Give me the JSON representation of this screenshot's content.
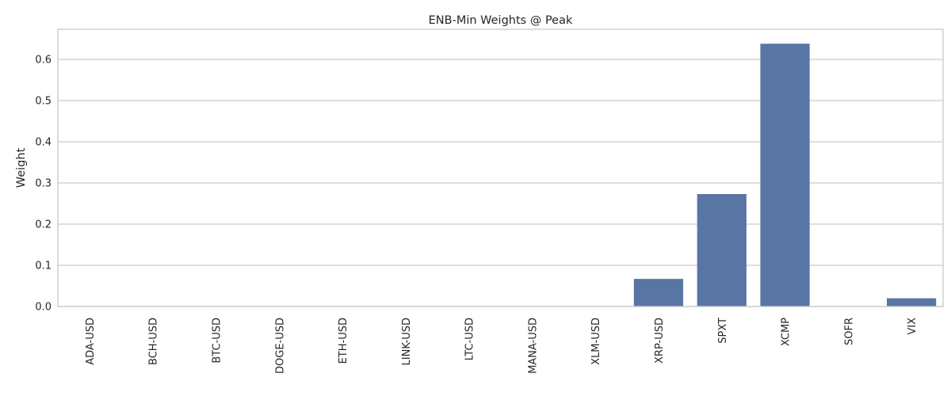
{
  "chart_data": {
    "type": "bar",
    "title": "ENB-Min Weights @ Peak",
    "xlabel": "",
    "ylabel": "Weight",
    "categories": [
      "ADA-USD",
      "BCH-USD",
      "BTC-USD",
      "DOGE-USD",
      "ETH-USD",
      "LINK-USD",
      "LTC-USD",
      "MANA-USD",
      "XLM-USD",
      "XRP-USD",
      "SPXT",
      "XCMP",
      "SOFR",
      "VIX"
    ],
    "values": [
      0,
      0,
      0,
      0,
      0,
      0,
      0,
      0,
      0,
      0.067,
      0.273,
      0.638,
      0,
      0.02
    ],
    "ylim": [
      0,
      0.673
    ],
    "yticks": [
      0.0,
      0.1,
      0.2,
      0.3,
      0.4,
      0.5,
      0.6
    ],
    "ytick_labels": [
      "0.0",
      "0.1",
      "0.2",
      "0.3",
      "0.4",
      "0.5",
      "0.6"
    ],
    "grid": true,
    "bar_color": "#5975a4",
    "grid_color": "#cccccc"
  }
}
